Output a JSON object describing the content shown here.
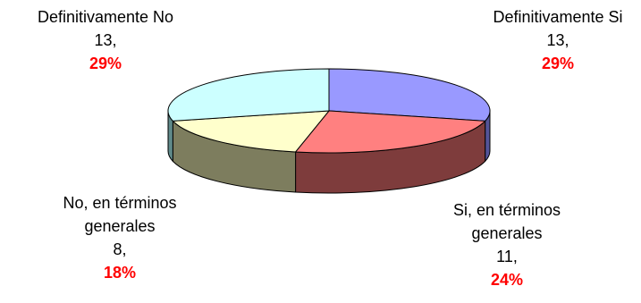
{
  "chart_data": {
    "type": "pie",
    "title": "",
    "slices": [
      {
        "label": "Definitivamente Si",
        "count": "13,",
        "percent": "29%",
        "value": 13,
        "top_color": "#9999ff",
        "side_color": "#545498"
      },
      {
        "label": "Si, en términos generales",
        "count": "11,",
        "percent": "24%",
        "value": 11,
        "top_color": "#ff8080",
        "side_color": "#7e3c3c"
      },
      {
        "label": "No, en términos generales",
        "count": "8,",
        "percent": "18%",
        "value": 8,
        "top_color": "#ffffcc",
        "side_color": "#7d7d5e"
      },
      {
        "label": "Definitivamente No",
        "count": "13,",
        "percent": "29%",
        "value": 13,
        "top_color": "#ccffff",
        "side_color": "#5f8a8a"
      }
    ],
    "label_lines": {
      "def_si": [
        "Definitivamente Si"
      ],
      "si_tg": [
        "Si, en términos",
        "generales"
      ],
      "no_tg": [
        "No, en términos",
        "generales"
      ],
      "def_no": [
        "Definitivamente No"
      ]
    },
    "percent_color": "#ff0000"
  }
}
